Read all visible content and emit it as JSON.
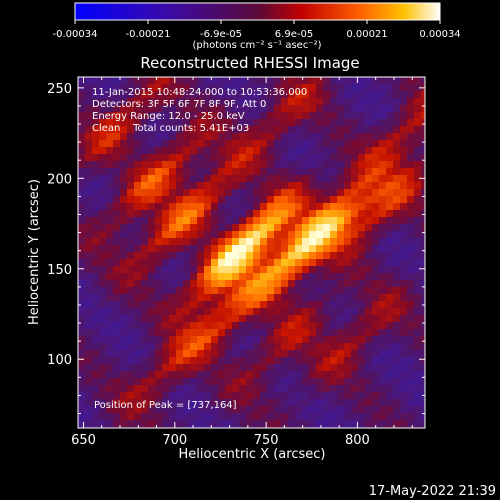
{
  "colorbar": {
    "tick_labels": [
      "-0.00034",
      "-0.00021",
      "-6.9e-05",
      "6.9e-05",
      "0.00021",
      "0.00034"
    ],
    "unit_label": "(photons cm⁻² s⁻¹ asec⁻²)",
    "range": [
      -0.00034,
      0.00034
    ]
  },
  "chart_data": {
    "type": "heatmap",
    "title": "Reconstructed RHESSI Image",
    "xlabel": "Heliocentric X (arcsec)",
    "ylabel": "Heliocentric Y (arcsec)",
    "xlim": [
      647,
      837
    ],
    "ylim": [
      62,
      256
    ],
    "xticks": [
      650,
      700,
      750,
      800
    ],
    "yticks": [
      100,
      150,
      200,
      250
    ],
    "colormap": "blue-purple-red-orange-yellow-white",
    "peak": [
      737,
      164
    ],
    "annotations": [
      "11-Jan-2015 10:48:24.000 to 10:53:36.000",
      "Detectors: 3F 5F 6F 7F 8F 9F, Att 0",
      "Energy Range: 12.0 - 25.0 keV",
      "Clean    Total counts: 5.41E+03"
    ],
    "peak_label": "Position of Peak = [737,164]",
    "sources": [
      {
        "x": 738,
        "y": 162,
        "value": 0.00034
      },
      {
        "x": 775,
        "y": 166,
        "value": 0.0003
      },
      {
        "x": 705,
        "y": 178,
        "value": 0.00018
      },
      {
        "x": 690,
        "y": 200,
        "value": 0.00016
      },
      {
        "x": 670,
        "y": 230,
        "value": 0.00012
      },
      {
        "x": 730,
        "y": 125,
        "value": 0.00012
      },
      {
        "x": 760,
        "y": 110,
        "value": 0.0001
      },
      {
        "x": 695,
        "y": 95,
        "value": 9e-05
      },
      {
        "x": 800,
        "y": 112,
        "value": 0.0001
      },
      {
        "x": 815,
        "y": 185,
        "value": 0.00014
      },
      {
        "x": 825,
        "y": 225,
        "value": 0.00011
      },
      {
        "x": 760,
        "y": 235,
        "value": 0.0001
      }
    ]
  },
  "footer": {
    "date": "17-May-2022 21:39"
  }
}
